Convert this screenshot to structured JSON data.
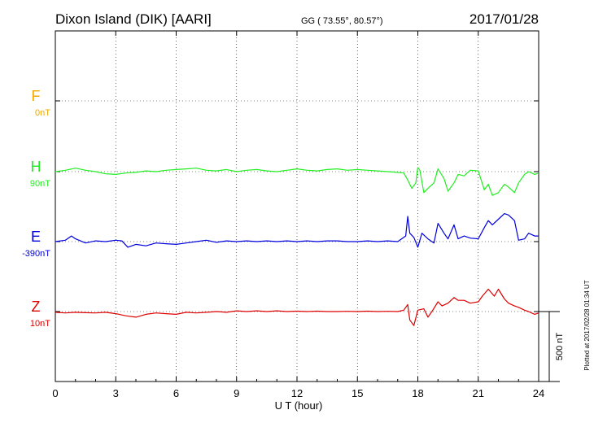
{
  "chart_data": {
    "type": "line",
    "title": "Dixon Island (DIK)  [AARI]",
    "coords": "GG ( 73.55°,  80.57°)",
    "date": "2017/01/28",
    "xlabel": "U T (hour)",
    "xlim": [
      0,
      24
    ],
    "xticks": [
      "0",
      "3",
      "6",
      "9",
      "12",
      "15",
      "18",
      "21",
      "24"
    ],
    "scale_bar_label": "500 nT",
    "plotted_note": "Plotted at 2017/02/28 01:34 UT",
    "grid": true,
    "series": [
      {
        "name": "F",
        "baseline_label": "0nT",
        "color": "#f0a800",
        "x": [],
        "y": []
      },
      {
        "name": "H",
        "baseline_label": "90nT",
        "color": "#22ee22",
        "x": [
          0,
          0.5,
          1,
          1.5,
          2,
          2.5,
          3,
          3.5,
          4,
          4.5,
          5,
          5.5,
          6,
          6.5,
          7,
          7.5,
          8,
          8.5,
          9,
          9.5,
          10,
          10.5,
          11,
          11.5,
          12,
          12.5,
          13,
          13.5,
          14,
          14.5,
          15,
          15.5,
          16,
          16.5,
          17,
          17.3,
          17.5,
          17.7,
          17.9,
          18,
          18.1,
          18.3,
          18.5,
          18.8,
          19,
          19.3,
          19.5,
          19.8,
          20,
          20.3,
          20.6,
          21,
          21.3,
          21.5,
          21.7,
          22,
          22.3,
          22.5,
          22.8,
          23,
          23.3,
          23.5,
          23.8,
          24
        ],
        "y": [
          0,
          10,
          25,
          10,
          0,
          -15,
          -20,
          -10,
          -5,
          5,
          0,
          10,
          15,
          20,
          25,
          10,
          5,
          15,
          0,
          10,
          15,
          5,
          0,
          10,
          20,
          10,
          5,
          15,
          20,
          10,
          15,
          10,
          5,
          0,
          -5,
          -10,
          -60,
          -120,
          -80,
          30,
          10,
          -150,
          -120,
          -80,
          20,
          -50,
          -140,
          -80,
          -20,
          -30,
          10,
          5,
          -130,
          -90,
          -170,
          -150,
          -90,
          -110,
          -150,
          -80,
          -20,
          0,
          -20,
          -10
        ]
      },
      {
        "name": "E",
        "baseline_label": "-390nT",
        "color": "#0000dd",
        "x": [
          0,
          0.5,
          0.8,
          1,
          1.5,
          2,
          2.5,
          3,
          3.3,
          3.6,
          4,
          4.5,
          5,
          5.5,
          6,
          6.5,
          7,
          7.5,
          8,
          8.5,
          9,
          9.5,
          10,
          10.5,
          11,
          11.5,
          12,
          12.5,
          13,
          13.5,
          14,
          14.5,
          15,
          15.5,
          16,
          16.5,
          17,
          17.4,
          17.5,
          17.6,
          17.8,
          18,
          18.2,
          18.5,
          18.8,
          19,
          19.3,
          19.5,
          19.8,
          20,
          20.3,
          20.6,
          21,
          21.3,
          21.5,
          21.7,
          22,
          22.3,
          22.5,
          22.8,
          23,
          23.3,
          23.5,
          23.8,
          24
        ],
        "y": [
          0,
          10,
          40,
          20,
          -10,
          5,
          0,
          10,
          5,
          -40,
          -20,
          -30,
          -10,
          -15,
          -20,
          -10,
          0,
          10,
          -5,
          5,
          0,
          5,
          0,
          5,
          0,
          5,
          0,
          5,
          0,
          5,
          5,
          0,
          0,
          5,
          0,
          5,
          0,
          40,
          180,
          60,
          30,
          -40,
          60,
          20,
          -10,
          130,
          60,
          20,
          120,
          20,
          40,
          25,
          20,
          100,
          150,
          120,
          160,
          200,
          190,
          150,
          10,
          20,
          60,
          40,
          40
        ]
      },
      {
        "name": "Z",
        "baseline_label": "10nT",
        "color": "#dd0000",
        "x": [
          0,
          0.5,
          1,
          1.5,
          2,
          2.5,
          3,
          3.5,
          4,
          4.5,
          5,
          5.5,
          6,
          6.5,
          7,
          7.5,
          8,
          8.5,
          9,
          9.5,
          10,
          10.5,
          11,
          11.5,
          12,
          12.5,
          13,
          13.5,
          14,
          14.5,
          15,
          15.5,
          16,
          16.5,
          17,
          17.3,
          17.5,
          17.6,
          17.8,
          18,
          18.3,
          18.5,
          18.7,
          19,
          19.2,
          19.5,
          19.8,
          20,
          20.3,
          20.6,
          21,
          21.2,
          21.5,
          21.8,
          22,
          22.3,
          22.5,
          22.8,
          23,
          23.3,
          23.5,
          23.8,
          24
        ],
        "y": [
          -5,
          -10,
          -5,
          -8,
          -10,
          -5,
          -15,
          -30,
          -40,
          -20,
          -10,
          -15,
          -20,
          -5,
          -10,
          -5,
          0,
          -5,
          5,
          0,
          5,
          0,
          5,
          0,
          3,
          0,
          3,
          0,
          0,
          2,
          0,
          3,
          0,
          2,
          0,
          10,
          50,
          -60,
          -100,
          10,
          20,
          -40,
          0,
          70,
          40,
          60,
          100,
          80,
          80,
          60,
          70,
          110,
          160,
          110,
          160,
          90,
          60,
          40,
          30,
          10,
          0,
          -20,
          -10
        ]
      }
    ]
  }
}
